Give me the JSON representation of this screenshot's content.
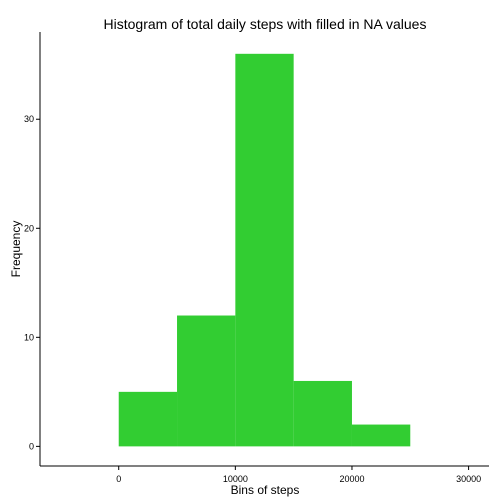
{
  "chart_data": {
    "type": "bar",
    "title": "Histogram of total daily steps with filled in NA values",
    "xlabel": "Bins of steps",
    "ylabel": "Frequency",
    "bins": [
      {
        "start": 0,
        "end": 5000,
        "count": 5
      },
      {
        "start": 5000,
        "end": 10000,
        "count": 12
      },
      {
        "start": 10000,
        "end": 15000,
        "count": 36
      },
      {
        "start": 15000,
        "end": 20000,
        "count": 6
      },
      {
        "start": 20000,
        "end": 25000,
        "count": 2
      }
    ],
    "xlim": [
      -6750,
      31750
    ],
    "ylim": [
      -1.8,
      38
    ],
    "xticks": [
      0,
      10000,
      20000,
      30000
    ],
    "yticks": [
      0,
      10,
      20,
      30
    ],
    "bar_color": "#32CD32",
    "grid": false
  }
}
